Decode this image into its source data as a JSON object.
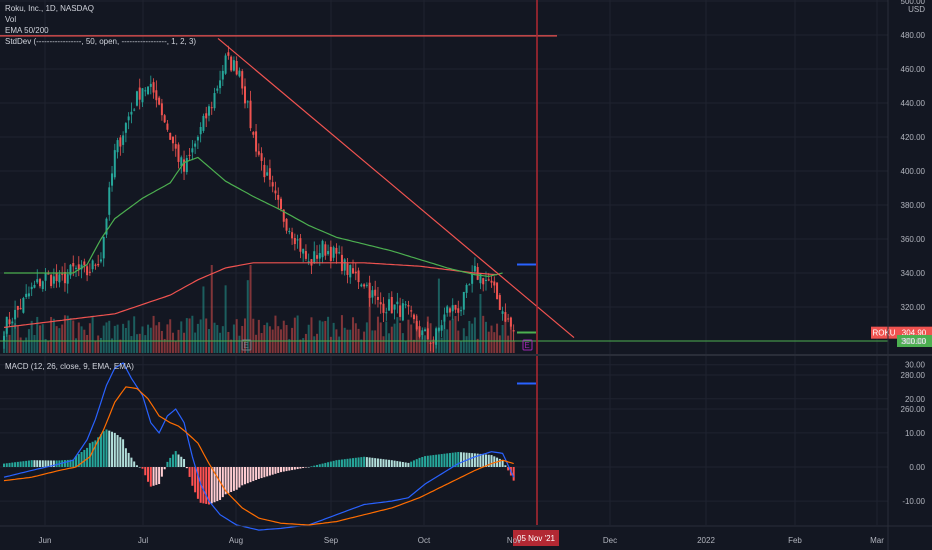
{
  "legend": {
    "title": "Roku, Inc., 1D, NASDAQ",
    "vol": "Vol",
    "ema": "EMA 50/200",
    "stddev": "StdDev (-----------------, 50, open, -----------------, 1, 2, 3)",
    "macd": "MACD (12, 26, close, 9, EMA, EMA)"
  },
  "colors": {
    "bg": "#131722",
    "grid": "#1f2330",
    "up": "#26a69a",
    "down": "#ef5350",
    "ema50": "#4caf50",
    "ema200": "#f05350",
    "trend": "#f05350",
    "macd_line": "#2962ff",
    "signal_line": "#ff6d00",
    "cursor": "#b22833",
    "hist_up_strong": "#26a69a",
    "hist_up_weak": "#b2dfdb",
    "hist_down_strong": "#ff5252",
    "hist_down_weak": "#ffcdd2"
  },
  "chart_data": {
    "type": "candlestick",
    "currency": "USD",
    "price_axis": {
      "ticks": [
        "500.00",
        "480.00",
        "460.00",
        "440.00",
        "420.00",
        "400.00",
        "380.00",
        "360.00",
        "340.00",
        "320.00",
        "300.00",
        "280.00",
        "260.00"
      ],
      "range": [
        250,
        500
      ]
    },
    "macd_axis": {
      "ticks": [
        "30.00",
        "20.00",
        "10.00",
        "0.00",
        "-10.00"
      ],
      "range": [
        -19,
        31
      ]
    },
    "x_axis": {
      "ticks": [
        "Jun",
        "Jul",
        "Aug",
        "Sep",
        "Oct",
        "Nov",
        "Dec",
        "2022",
        "Feb",
        "Mar"
      ],
      "cursor_label": "05 Nov '21"
    },
    "last_price": {
      "symbol": "ROKU",
      "value": "304.90"
    },
    "support_price": {
      "value": "300.00"
    },
    "horizontal_line": 479.5,
    "trendline": {
      "from": [
        "2021-07-26",
        478
      ],
      "to": [
        "2021-11-18",
        302
      ]
    },
    "stddev_marks": [
      {
        "price": 345,
        "color": "#2962ff"
      },
      {
        "price": 305,
        "color": "#4caf50"
      },
      {
        "price": 275,
        "color": "#2962ff"
      }
    ],
    "earnings_markers": [
      "Jul 29",
      "Nov 3"
    ],
    "close_anchors": [
      [
        0,
        308
      ],
      [
        5,
        318
      ],
      [
        10,
        330
      ],
      [
        15,
        338
      ],
      [
        20,
        335
      ],
      [
        25,
        342
      ],
      [
        30,
        340
      ],
      [
        35,
        350
      ],
      [
        40,
        410
      ],
      [
        45,
        432
      ],
      [
        50,
        450
      ],
      [
        55,
        445
      ],
      [
        60,
        420
      ],
      [
        65,
        400
      ],
      [
        70,
        420
      ],
      [
        75,
        440
      ],
      [
        80,
        465
      ],
      [
        85,
        460
      ],
      [
        90,
        420
      ],
      [
        95,
        395
      ],
      [
        100,
        375
      ],
      [
        105,
        362
      ],
      [
        110,
        345
      ],
      [
        115,
        355
      ],
      [
        120,
        350
      ],
      [
        125,
        340
      ],
      [
        130,
        335
      ],
      [
        135,
        322
      ],
      [
        140,
        320
      ],
      [
        145,
        318
      ],
      [
        150,
        305
      ],
      [
        155,
        300
      ],
      [
        160,
        318
      ],
      [
        165,
        320
      ],
      [
        170,
        340
      ],
      [
        175,
        335
      ],
      [
        180,
        318
      ],
      [
        184,
        305
      ]
    ],
    "ema50_anchors": [
      [
        0,
        340
      ],
      [
        10,
        340
      ],
      [
        25,
        340
      ],
      [
        30,
        345
      ],
      [
        35,
        360
      ],
      [
        40,
        372
      ],
      [
        50,
        384
      ],
      [
        60,
        393
      ],
      [
        65,
        405
      ],
      [
        70,
        408
      ],
      [
        80,
        394
      ],
      [
        90,
        385
      ],
      [
        100,
        377
      ],
      [
        110,
        368
      ],
      [
        120,
        361
      ],
      [
        130,
        357
      ],
      [
        140,
        353
      ],
      [
        150,
        348
      ],
      [
        160,
        343
      ],
      [
        170,
        339
      ],
      [
        175,
        338
      ],
      [
        180,
        340
      ]
    ],
    "ema200_anchors": [
      [
        0,
        308
      ],
      [
        20,
        312
      ],
      [
        40,
        316
      ],
      [
        60,
        327
      ],
      [
        70,
        336
      ],
      [
        80,
        343
      ],
      [
        90,
        346
      ],
      [
        110,
        346
      ],
      [
        130,
        346
      ],
      [
        150,
        344
      ],
      [
        160,
        342
      ],
      [
        170,
        340
      ],
      [
        178,
        339
      ]
    ],
    "macd_anchors": [
      [
        0,
        -3
      ],
      [
        10,
        -1
      ],
      [
        18,
        0.5
      ],
      [
        25,
        2
      ],
      [
        30,
        8
      ],
      [
        33,
        14
      ],
      [
        37,
        24
      ],
      [
        40,
        29
      ],
      [
        43,
        30.5
      ],
      [
        46,
        26
      ],
      [
        50,
        21
      ],
      [
        53,
        13
      ],
      [
        56,
        10
      ],
      [
        59,
        15
      ],
      [
        62,
        17
      ],
      [
        65,
        13
      ],
      [
        68,
        3
      ],
      [
        71,
        -5
      ],
      [
        74,
        -10
      ],
      [
        78,
        -14
      ],
      [
        84,
        -17
      ],
      [
        92,
        -18.5
      ],
      [
        100,
        -18
      ],
      [
        110,
        -17
      ],
      [
        120,
        -14
      ],
      [
        130,
        -11
      ],
      [
        140,
        -10
      ],
      [
        146,
        -9
      ],
      [
        152,
        -5
      ],
      [
        158,
        -2
      ],
      [
        164,
        1
      ],
      [
        170,
        3
      ],
      [
        176,
        4.5
      ],
      [
        180,
        4
      ],
      [
        184,
        -3
      ]
    ],
    "signal_anchors": [
      [
        0,
        -4
      ],
      [
        10,
        -3
      ],
      [
        20,
        -1
      ],
      [
        26,
        0
      ],
      [
        31,
        3
      ],
      [
        36,
        11
      ],
      [
        40,
        19
      ],
      [
        44,
        23.5
      ],
      [
        48,
        23
      ],
      [
        52,
        20
      ],
      [
        56,
        15
      ],
      [
        60,
        13
      ],
      [
        63,
        12
      ],
      [
        66,
        10
      ],
      [
        70,
        7
      ],
      [
        74,
        1
      ],
      [
        80,
        -7
      ],
      [
        86,
        -12
      ],
      [
        92,
        -15
      ],
      [
        100,
        -16.5
      ],
      [
        110,
        -17
      ],
      [
        120,
        -16
      ],
      [
        130,
        -14
      ],
      [
        140,
        -12
      ],
      [
        150,
        -9
      ],
      [
        160,
        -5
      ],
      [
        170,
        -1
      ],
      [
        176,
        1
      ],
      [
        180,
        2
      ],
      [
        184,
        1
      ]
    ]
  }
}
